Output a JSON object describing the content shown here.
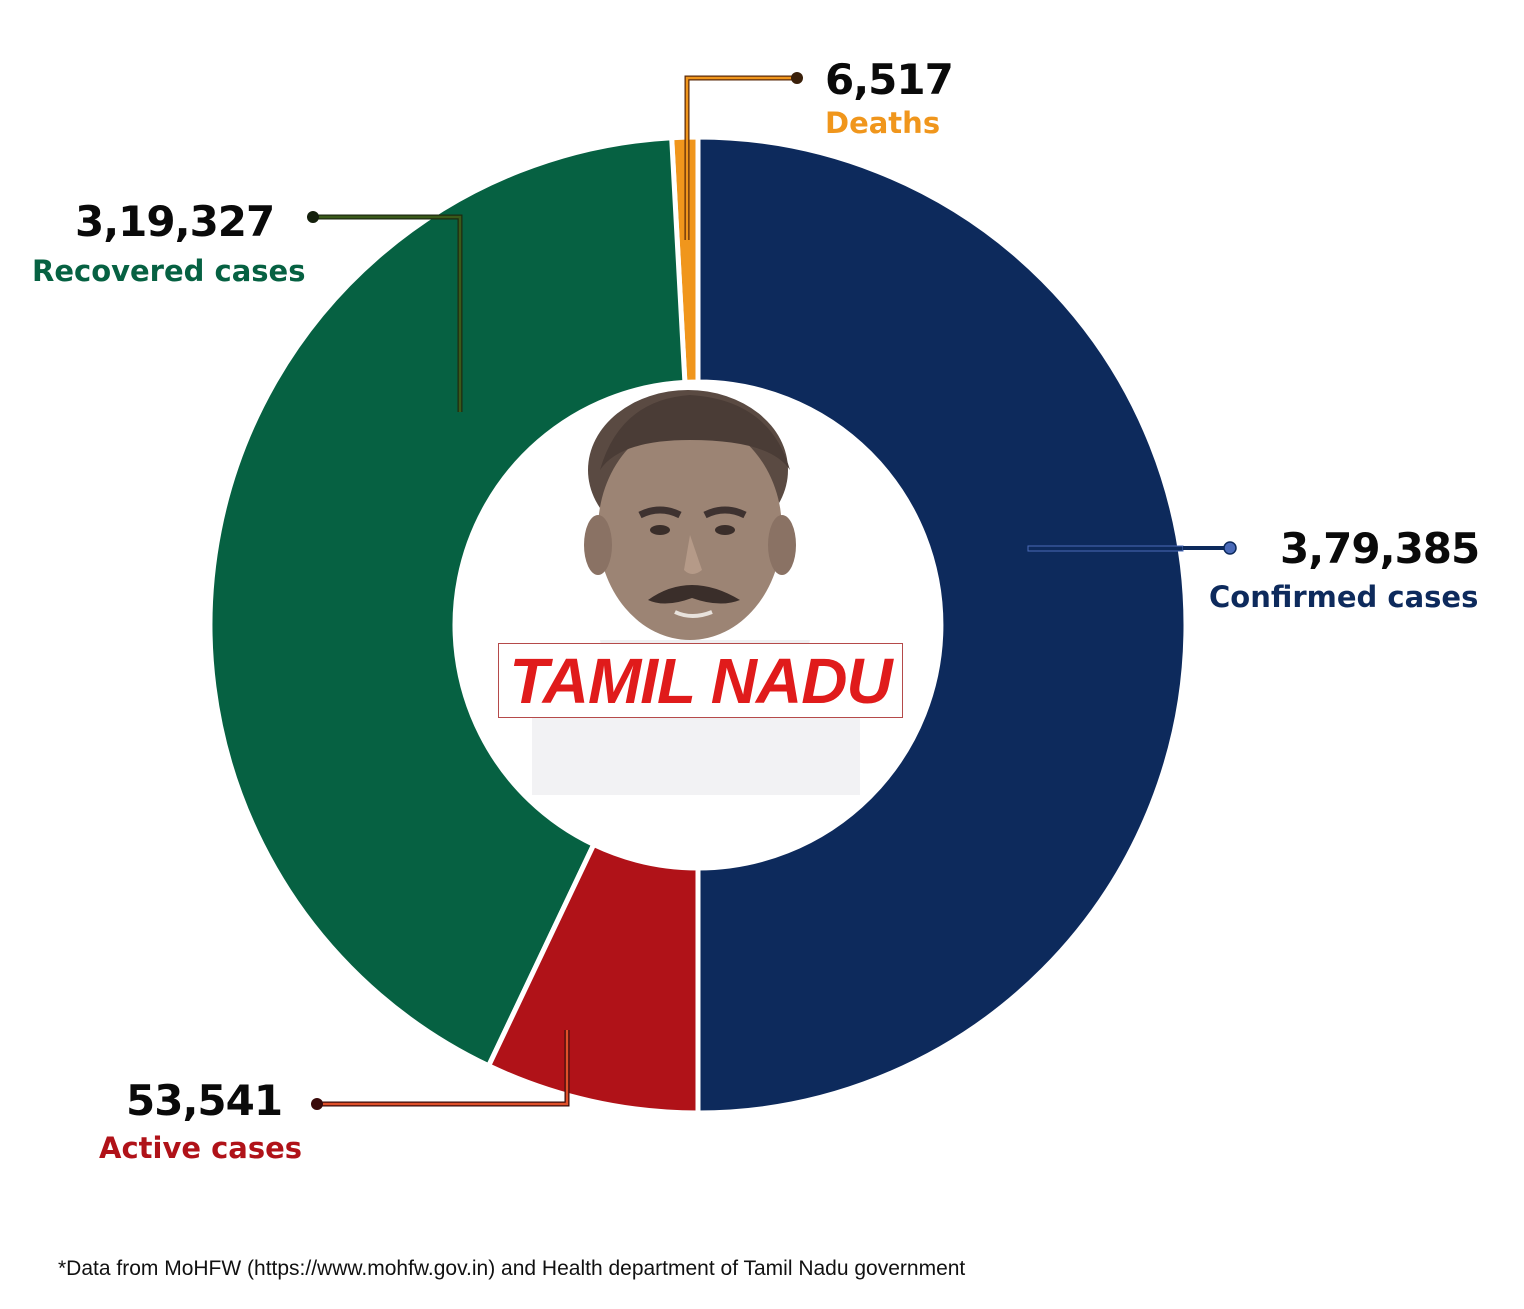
{
  "chart_data": {
    "type": "pie",
    "variant": "donut",
    "title": "TAMIL NADU",
    "categories": [
      "Confirmed cases",
      "Deaths",
      "Recovered cases",
      "Active cases"
    ],
    "values": [
      379385,
      6517,
      319327,
      53541
    ],
    "display_values": [
      "3,79,385",
      "6,517",
      "3,19,327",
      "53,541"
    ],
    "colors": [
      "#0d2a5c",
      "#f0961c",
      "#066142",
      "#b01218"
    ],
    "layout_note": "Confirmed cases occupies right half; Deaths + Recovered + Active make up left half (sum equals confirmed)",
    "legend_position": "callouts"
  },
  "labels": {
    "deaths": {
      "value": "6,517",
      "label": "Deaths",
      "color": "#f0961c"
    },
    "recovered": {
      "value": "3,19,327",
      "label": "Recovered cases",
      "color": "#066142"
    },
    "confirmed": {
      "value": "3,79,385",
      "label": "Confirmed cases",
      "color": "#0d2a5c"
    },
    "active": {
      "value": "53,541",
      "label": "Active cases",
      "color": "#b01218"
    }
  },
  "center": {
    "title": "TAMIL NADU",
    "portrait": "portrait-illustration"
  },
  "footnote": "*Data from MoHFW (https://www.mohfw.gov.in) and Health department of Tamil Nadu government"
}
